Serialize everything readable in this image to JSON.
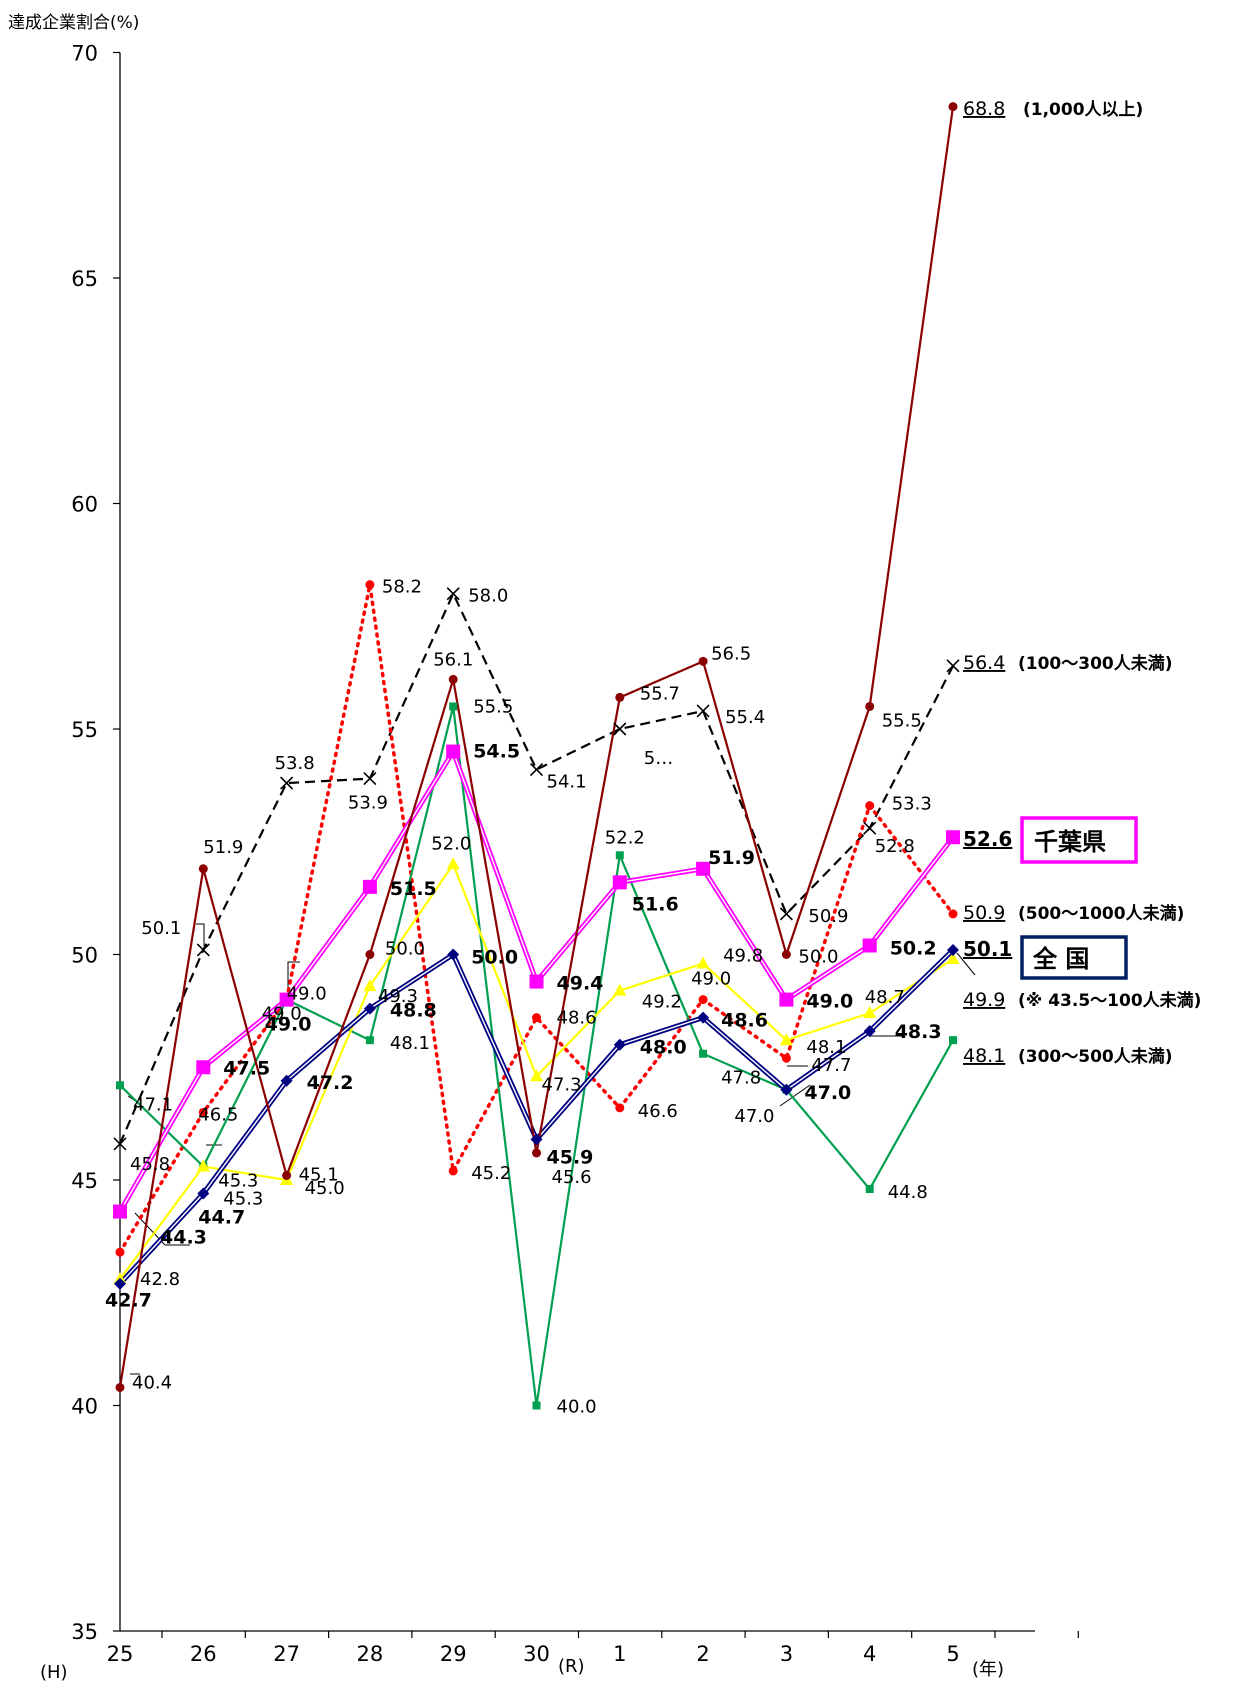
{
  "chart_data": {
    "type": "line",
    "ylabel": "達成企業割合(%)",
    "ylim": [
      35,
      70
    ],
    "yticks": [
      35,
      40,
      45,
      50,
      55,
      60,
      65,
      70
    ],
    "grid": false,
    "categories": [
      "25",
      "26",
      "27",
      "28",
      "29",
      "30",
      "1",
      "2",
      "3",
      "4",
      "5"
    ],
    "era_labels": {
      "heisei": "(H)",
      "reiwa": "(R)",
      "year": "(年)"
    },
    "series": [
      {
        "key": "s1000",
        "name": "(1,000人以上)",
        "color": "#8B0000",
        "style": "solid",
        "marker": "circle",
        "values": [
          40.4,
          51.9,
          45.1,
          50.0,
          56.1,
          45.6,
          55.7,
          56.5,
          50.0,
          55.5,
          68.8
        ],
        "labels": [
          "40.4",
          "51.9",
          "45.1",
          "50.0",
          "56.1",
          "45.6",
          "55.7",
          "56.5",
          "50.0",
          "55.5",
          ""
        ],
        "end_value": "68.8"
      },
      {
        "key": "s100_300",
        "name": "(100〜300人未満)",
        "color": "#000000",
        "style": "dashed",
        "marker": "x",
        "values": [
          45.8,
          50.1,
          53.8,
          53.9,
          58.0,
          54.1,
          55.0,
          55.4,
          50.9,
          52.8,
          56.4
        ],
        "labels": [
          "45.8",
          "50.1",
          "53.8",
          "53.9",
          "58.0",
          "54.1",
          "5…",
          "55.4",
          "50.9",
          "52.8",
          ""
        ],
        "end_value": "56.4"
      },
      {
        "key": "s500_1000",
        "name": "(500〜1000人未満)",
        "color": "#FF0000",
        "style": "dotted",
        "marker": "circle",
        "values": [
          43.4,
          46.5,
          49.0,
          58.2,
          45.2,
          48.6,
          46.6,
          49.0,
          47.7,
          53.3,
          50.9
        ],
        "labels": [
          "",
          "46.5",
          "49.0",
          "58.2",
          "45.2",
          "48.6",
          "46.6",
          "49.0",
          "47.7",
          "53.3",
          ""
        ],
        "end_value": "50.9"
      },
      {
        "key": "s300_500",
        "name": "(300〜500人未満)",
        "color": "#00A050",
        "style": "solid",
        "marker": "square",
        "values": [
          47.1,
          45.3,
          49.0,
          48.1,
          55.5,
          40.0,
          52.2,
          47.8,
          47.0,
          44.8,
          48.1
        ],
        "labels": [
          "47.1",
          "45.3",
          "49.0",
          "48.1",
          "55.5",
          "40.0",
          "52.2",
          "47.8",
          "47.0",
          "44.8",
          ""
        ],
        "end_value": "48.1"
      },
      {
        "key": "s43_100",
        "name": "(※ 43.5〜100人未満)",
        "color": "#FFFF00",
        "style": "solid",
        "marker": "triangle",
        "values": [
          42.8,
          45.3,
          45.0,
          49.3,
          52.0,
          47.3,
          49.2,
          49.8,
          48.1,
          48.7,
          49.9
        ],
        "labels": [
          "42.8",
          "45.3",
          "45.0",
          "49.3",
          "52.0",
          "47.3",
          "49.2",
          "49.8",
          "48.1",
          "48.7",
          ""
        ],
        "end_value": "49.9"
      },
      {
        "key": "chiba",
        "name": "千葉県",
        "color": "#FF00FF",
        "style": "double",
        "marker": "square",
        "values": [
          44.3,
          47.5,
          49.0,
          51.5,
          54.5,
          49.4,
          51.6,
          51.9,
          49.0,
          50.2,
          52.6
        ],
        "labels": [
          "44.3",
          "47.5",
          "49.0",
          "51.5",
          "54.5",
          "49.4",
          "51.6",
          "51.9",
          "49.0",
          "50.2",
          ""
        ],
        "end_value": "52.6"
      },
      {
        "key": "zenkoku",
        "name": "全 国",
        "color": "#000080",
        "style": "double",
        "marker": "diamond",
        "values": [
          42.7,
          44.7,
          47.2,
          48.8,
          50.0,
          45.9,
          48.0,
          48.6,
          47.0,
          48.3,
          50.1
        ],
        "labels": [
          "42.7",
          "44.7",
          "47.2",
          "48.8",
          "50.0",
          "45.9",
          "48.0",
          "48.6",
          "47.0",
          "48.3",
          ""
        ],
        "end_value": "50.1"
      }
    ]
  }
}
